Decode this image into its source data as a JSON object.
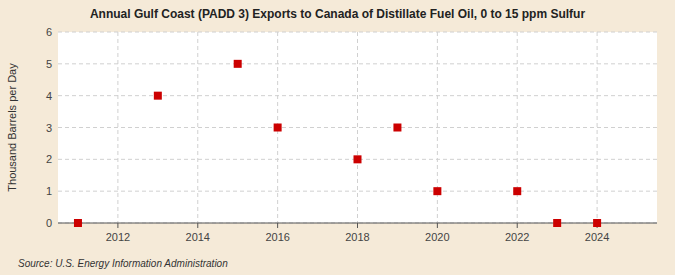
{
  "chart_data": {
    "type": "scatter",
    "title": "Annual Gulf Coast (PADD 3) Exports to Canada of Distillate Fuel Oil, 0 to 15 ppm Sulfur",
    "ylabel": "Thousand Barrels per Day",
    "annotations": [
      "Source: U.S. Energy Information Administration"
    ],
    "x": [
      2011,
      2013,
      2015,
      2016,
      2018,
      2019,
      2020,
      2022,
      2023,
      2024
    ],
    "values": [
      0.0,
      4.0,
      5.0,
      3.0,
      2.0,
      3.0,
      1.0,
      1.0,
      0.0,
      0.0
    ],
    "color": "#cc0000",
    "marker": "square",
    "xlim": [
      2010.5,
      2025.5
    ],
    "ylim": [
      0,
      6
    ],
    "xticks": [
      2012,
      2014,
      2016,
      2018,
      2020,
      2022,
      2024
    ],
    "yticks": [
      0,
      1,
      2,
      3,
      4,
      5,
      6
    ],
    "grid": true
  }
}
